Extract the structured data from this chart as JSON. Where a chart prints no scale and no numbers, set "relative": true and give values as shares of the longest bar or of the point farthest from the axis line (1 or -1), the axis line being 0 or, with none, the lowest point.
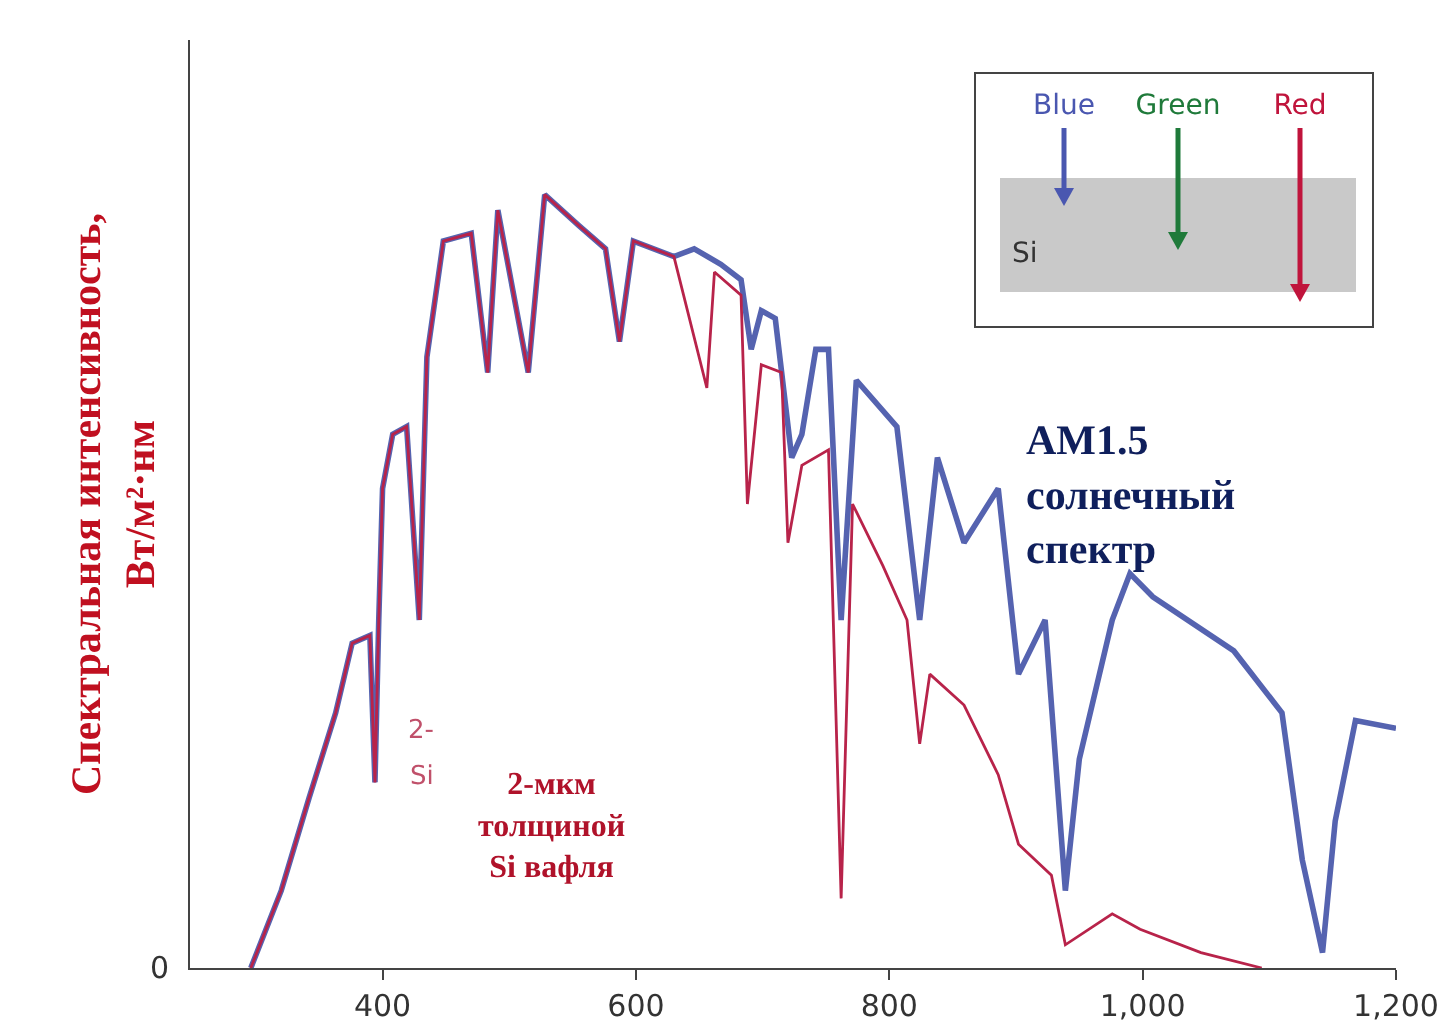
{
  "chart_data": {
    "type": "line",
    "relative": true,
    "ylabel": "Спектральная интенсивность, Вт/м²·нм",
    "xlim": [
      248,
      1200
    ],
    "xticks": [
      400,
      600,
      800,
      {
        "value": 1000,
        "label": "1,000"
      },
      {
        "value": 1200,
        "label": "1,200"
      }
    ],
    "grid": false,
    "legend": false,
    "marker": "none",
    "line_style": "solid",
    "annotations": [
      "0",
      "2-",
      "Si",
      "Blue",
      "Green",
      "Red",
      "Si"
    ],
    "series": [
      {
        "name": "AM1.5 солнечный спектр",
        "color": "#5563b0",
        "x": [
          296,
          320,
          342,
          363,
          376,
          390,
          394,
          397,
          400,
          408,
          419,
          429,
          435,
          448,
          470,
          483,
          491,
          515,
          528,
          555,
          576,
          587,
          598,
          630,
          646,
          667,
          683,
          691,
          699,
          710,
          723,
          731,
          742,
          752,
          762,
          774,
          806,
          824,
          838,
          859,
          886,
          902,
          923,
          939,
          950,
          976,
          990,
          1008,
          1072,
          1110,
          1126,
          1142,
          1152,
          1168,
          1200
        ],
        "values": [
          0,
          0.1,
          0.22,
          0.33,
          0.42,
          0.43,
          0.24,
          0.45,
          0.62,
          0.69,
          0.7,
          0.45,
          0.79,
          0.94,
          0.95,
          0.77,
          0.98,
          0.77,
          1,
          0.96,
          0.93,
          0.81,
          0.94,
          0.92,
          0.93,
          0.91,
          0.89,
          0.8,
          0.85,
          0.84,
          0.66,
          0.69,
          0.8,
          0.8,
          0.45,
          0.76,
          0.7,
          0.45,
          0.66,
          0.55,
          0.62,
          0.38,
          0.45,
          0.1,
          0.27,
          0.45,
          0.51,
          0.48,
          0.41,
          0.33,
          0.14,
          0.02,
          0.19,
          0.32,
          0.31
        ]
      },
      {
        "name": "2-мкм толщиной Si вафля",
        "color": "#b8234a",
        "x": [
          296,
          320,
          342,
          363,
          376,
          390,
          394,
          397,
          400,
          408,
          419,
          429,
          435,
          448,
          470,
          483,
          491,
          515,
          528,
          555,
          576,
          587,
          598,
          630,
          656,
          662,
          683,
          688,
          699,
          715,
          720,
          731,
          752,
          762,
          771,
          795,
          814,
          824,
          832,
          859,
          886,
          902,
          928,
          939,
          976,
          998,
          1046,
          1094
        ],
        "values": [
          0,
          0.1,
          0.22,
          0.33,
          0.42,
          0.43,
          0.24,
          0.45,
          0.62,
          0.69,
          0.7,
          0.45,
          0.79,
          0.94,
          0.95,
          0.77,
          0.98,
          0.77,
          1,
          0.96,
          0.93,
          0.81,
          0.94,
          0.92,
          0.75,
          0.9,
          0.87,
          0.6,
          0.78,
          0.77,
          0.55,
          0.65,
          0.67,
          0.09,
          0.6,
          0.52,
          0.45,
          0.29,
          0.38,
          0.34,
          0.25,
          0.16,
          0.12,
          0.03,
          0.07,
          0.05,
          0.02,
          0
        ]
      }
    ]
  }
}
